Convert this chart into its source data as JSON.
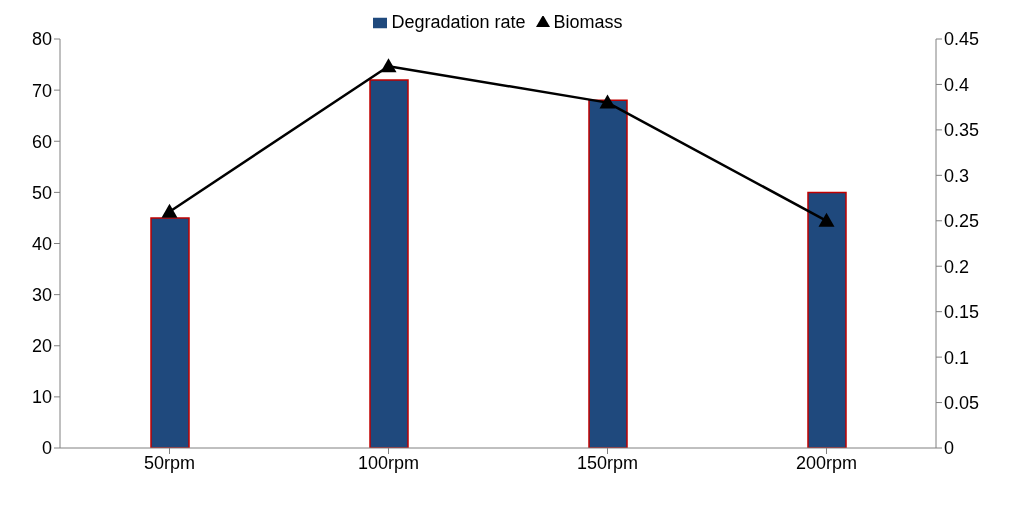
{
  "chart_data": {
    "type": "bar",
    "categories": [
      "50rpm",
      "100rpm",
      "150rpm",
      "200rpm"
    ],
    "series": [
      {
        "name": "Degradation rate",
        "color": "#1f497d",
        "values": [
          45,
          72,
          68,
          50
        ]
      },
      {
        "name": "Biomass",
        "type": "line",
        "axis": "y2",
        "color": "#000000",
        "marker": "triangle",
        "line_style": "solid",
        "values": [
          0.26,
          0.42,
          0.38,
          0.25
        ]
      }
    ],
    "ylim": [
      0,
      80
    ],
    "yticks": [
      0,
      10,
      20,
      30,
      40,
      50,
      60,
      70,
      80
    ],
    "y2lim": [
      0,
      0.45
    ],
    "y2ticks": [
      0,
      0.05,
      0.1,
      0.15,
      0.2,
      0.25,
      0.3,
      0.35,
      0.4,
      0.45
    ],
    "grid": false,
    "legend": "top"
  }
}
